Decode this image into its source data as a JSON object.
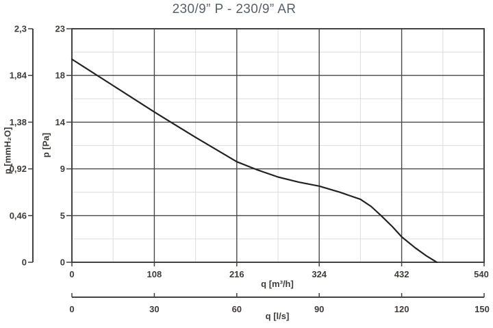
{
  "title": "230/9” P - 230/9” AR",
  "colors": {
    "title": "#566069",
    "text": "#403b38",
    "axis": "#414042",
    "grid_major": "#474747",
    "grid_minor": "#dcdcdc",
    "curve": "#242122",
    "background": "#ffffff"
  },
  "chart_data": {
    "type": "line",
    "title": "230/9” P - 230/9” AR",
    "grid": {
      "major": true,
      "minor": true
    },
    "x_axis_primary": {
      "label": "q [m³/h]",
      "range": [
        0,
        540
      ],
      "ticks": [
        0,
        108,
        216,
        324,
        432,
        540
      ],
      "tick_labels": [
        "0",
        "108",
        "216",
        "324",
        "432",
        "540"
      ]
    },
    "x_axis_secondary": {
      "label": "q [l/s]",
      "range": [
        0,
        150
      ],
      "ticks": [
        0,
        30,
        60,
        90,
        120,
        150
      ],
      "tick_labels": [
        "0",
        "30",
        "60",
        "90",
        "120",
        "150"
      ]
    },
    "y_axis_primary": {
      "label": "p [Pa]",
      "range": [
        0,
        23
      ],
      "tick_values": [
        0,
        4.6,
        9.2,
        13.8,
        18.4,
        23
      ],
      "tick_labels": [
        "0",
        "5",
        "9",
        "14",
        "18",
        "23"
      ]
    },
    "y_axis_secondary": {
      "label": "p [mmH₂O]",
      "range": [
        0,
        2.3
      ],
      "tick_values": [
        0,
        4.6,
        9.2,
        13.8,
        18.4,
        23
      ],
      "tick_labels": [
        "0",
        "0,46",
        "0,92",
        "1,38",
        "1,84",
        "2,3"
      ]
    },
    "series": [
      {
        "name": "230/9” P - 230/9” AR",
        "x_unit": "m³/h",
        "y_unit": "Pa",
        "points": [
          [
            0,
            20.0
          ],
          [
            54,
            17.4
          ],
          [
            108,
            14.8
          ],
          [
            162,
            12.3
          ],
          [
            216,
            9.9
          ],
          [
            243,
            9.1
          ],
          [
            270,
            8.4
          ],
          [
            297,
            7.9
          ],
          [
            324,
            7.5
          ],
          [
            351,
            6.9
          ],
          [
            378,
            6.2
          ],
          [
            392,
            5.5
          ],
          [
            405,
            4.6
          ],
          [
            420,
            3.5
          ],
          [
            432,
            2.5
          ],
          [
            450,
            1.4
          ],
          [
            465,
            0.6
          ],
          [
            478,
            0
          ]
        ]
      }
    ]
  }
}
